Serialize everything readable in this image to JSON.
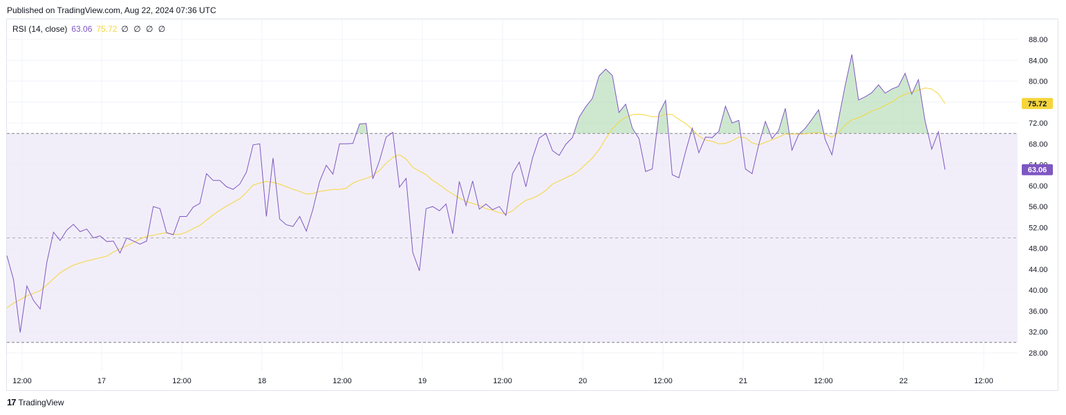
{
  "header": {
    "published": "Published on TradingView.com, Aug 22, 2024 07:36 UTC"
  },
  "indicator": {
    "name": "RSI (14, close)",
    "rsi_value": "63.06",
    "ma_value": "75.72",
    "extra": "∅ ∅ ∅ ∅"
  },
  "footer": {
    "brand": "TradingView",
    "logo_glyph": "17"
  },
  "colors": {
    "rsi": "#7e57c2",
    "ma": "#f5d53a",
    "band": "#ede7f6",
    "overbought_fill": "#a5d6a7",
    "grid": "#f0f3fa",
    "dashed": "#787b86"
  },
  "chart_data": {
    "type": "line",
    "title": "",
    "xlabel": "",
    "ylabel": "",
    "ylim": [
      25.5,
      91.5
    ],
    "y_ticks": [
      "88.00",
      "84.00",
      "80.00",
      "76.00",
      "72.00",
      "68.00",
      "64.00",
      "60.00",
      "56.00",
      "52.00",
      "48.00",
      "44.00",
      "40.00",
      "36.00",
      "32.00",
      "28.00"
    ],
    "x_tick_labels": [
      "12:00",
      "17",
      "12:00",
      "18",
      "12:00",
      "19",
      "12:00",
      "20",
      "12:00",
      "21",
      "12:00",
      "22",
      "12:00"
    ],
    "bands": {
      "upper": 70,
      "middle": 50,
      "lower": 30
    },
    "series": [
      {
        "name": "RSI (14, close)",
        "last_value": "63.06",
        "values": [
          46.6,
          42.0,
          31.9,
          40.8,
          38.0,
          36.4,
          45.3,
          51.1,
          49.5,
          51.5,
          52.6,
          51.2,
          51.7,
          50.0,
          50.4,
          49.3,
          49.4,
          47.1,
          50.0,
          49.4,
          48.8,
          49.4,
          56.0,
          55.6,
          51.0,
          50.6,
          54.1,
          54.1,
          55.9,
          56.6,
          62.3,
          61.0,
          61.0,
          59.8,
          59.3,
          60.3,
          62.6,
          67.8,
          68.0,
          54.1,
          65.3,
          53.6,
          52.5,
          52.2,
          54.1,
          51.3,
          55.5,
          60.8,
          63.9,
          62.2,
          68.0,
          68.0,
          68.1,
          71.8,
          71.9,
          61.3,
          64.8,
          69.3,
          70.2,
          59.7,
          61.4,
          47.2,
          43.7,
          55.6,
          56.0,
          55.2,
          56.5,
          50.8,
          60.8,
          56.2,
          60.9,
          55.5,
          56.5,
          55.4,
          56.0,
          54.3,
          62.3,
          64.5,
          59.8,
          65.3,
          69.1,
          70.0,
          66.7,
          65.8,
          67.9,
          69.2,
          73.1,
          75.1,
          76.7,
          81.0,
          82.3,
          81.1,
          74.0,
          75.6,
          71.0,
          69.0,
          62.7,
          63.2,
          73.8,
          76.3,
          62.1,
          61.5,
          66.5,
          71.0,
          66.3,
          69.3,
          69.2,
          70.4,
          75.2,
          72.0,
          72.5,
          63.2,
          62.3,
          67.8,
          72.3,
          69.0,
          70.6,
          74.8,
          66.8,
          69.8,
          71.0,
          72.7,
          74.5,
          68.8,
          65.9,
          72.7,
          79.2,
          85.1,
          76.4,
          77.0,
          77.8,
          79.3,
          77.7,
          78.5,
          79.0,
          81.5,
          77.5,
          80.3,
          72.4,
          67.0,
          70.3,
          63.06
        ]
      },
      {
        "name": "MA",
        "last_value": "75.72",
        "values": [
          36.6,
          37.5,
          38.2,
          38.9,
          39.4,
          39.9,
          41.0,
          42.2,
          43.3,
          44.1,
          44.8,
          45.2,
          45.6,
          45.9,
          46.2,
          46.5,
          47.3,
          47.9,
          48.5,
          49.1,
          49.8,
          50.3,
          50.5,
          50.8,
          51.0,
          50.7,
          50.7,
          51.1,
          51.8,
          52.4,
          53.4,
          54.4,
          55.3,
          56.1,
          56.8,
          57.5,
          58.7,
          60.1,
          60.5,
          60.8,
          60.6,
          60.3,
          59.8,
          59.3,
          58.9,
          58.4,
          58.5,
          58.9,
          59.1,
          59.3,
          59.3,
          59.5,
          60.5,
          61.0,
          61.4,
          61.9,
          62.9,
          64.3,
          65.4,
          65.9,
          65.1,
          63.5,
          62.8,
          62.1,
          61.0,
          60.2,
          59.2,
          58.4,
          57.6,
          57.0,
          56.6,
          56.2,
          55.6,
          55.3,
          54.8,
          54.6,
          55.2,
          56.3,
          57.2,
          57.6,
          58.2,
          59.1,
          60.3,
          60.9,
          61.5,
          62.1,
          62.9,
          64.1,
          65.3,
          66.9,
          69.0,
          70.9,
          72.2,
          73.1,
          73.6,
          73.7,
          73.5,
          73.2,
          73.2,
          73.7,
          73.6,
          72.7,
          71.9,
          70.8,
          69.5,
          68.7,
          68.5,
          68.0,
          68.1,
          68.6,
          69.3,
          69.2,
          68.2,
          67.8,
          68.3,
          68.8,
          69.3,
          69.9,
          69.9,
          69.9,
          69.9,
          70.1,
          70.2,
          69.8,
          69.3,
          70.1,
          71.6,
          72.6,
          73.0,
          73.6,
          74.3,
          74.7,
          75.4,
          76.0,
          76.9,
          77.5,
          77.9,
          78.3,
          78.7,
          78.5,
          77.6,
          75.72
        ]
      }
    ]
  }
}
